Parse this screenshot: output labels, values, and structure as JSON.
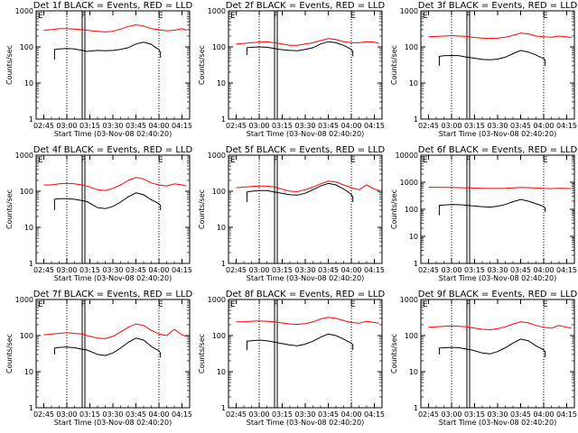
{
  "chart_data": {
    "type": "line",
    "panel_grid": "3x3",
    "yscale": "log",
    "ylabel": "Counts/sec",
    "xlabel": "Start Time (03-Nov-08 02:40:20)",
    "xlim": [
      "02:40",
      "04:20"
    ],
    "xticks": [
      "02:45",
      "03:00",
      "03:15",
      "03:30",
      "03:45",
      "04:00",
      "04:15"
    ],
    "dotted_lines_at": [
      "03:00",
      "04:00"
    ],
    "bold_markers": [
      {
        "label": "F",
        "time": "03:10"
      },
      {
        "label": "E",
        "time": "04:01"
      }
    ],
    "series_colors": {
      "events": "#000000",
      "lld": "#ff0000"
    },
    "panels": [
      {
        "title": "Det 1f BLACK = Events, RED = LLD",
        "ylim": [
          1,
          1000
        ],
        "yticks": [
          "1",
          "10",
          "100",
          "1000"
        ],
        "series": [
          {
            "color": "#ff0000",
            "x": [
              "02:45",
              "02:50",
              "02:55",
              "03:00",
              "03:05",
              "03:10",
              "03:13",
              "03:20",
              "03:25",
              "03:30",
              "03:35",
              "03:40",
              "03:45",
              "03:50",
              "03:55",
              "04:00",
              "04:05",
              "04:10",
              "04:15",
              "04:18"
            ],
            "y": [
              290,
              300,
              320,
              320,
              310,
              300,
              290,
              270,
              260,
              270,
              310,
              370,
              410,
              380,
              320,
              300,
              280,
              290,
              320,
              290
            ]
          },
          {
            "color": "#000000",
            "x": [
              "02:52",
              "02:52",
              "02:55",
              "03:00",
              "03:05",
              "03:10",
              "03:13",
              "03:20",
              "03:25",
              "03:30",
              "03:35",
              "03:40",
              "03:45",
              "03:50",
              "03:55",
              "03:58",
              "04:00",
              "04:01",
              "04:01"
            ],
            "y": [
              45,
              85,
              88,
              90,
              88,
              80,
              75,
              80,
              78,
              80,
              85,
              95,
              120,
              135,
              118,
              95,
              85,
              70,
              50
            ]
          }
        ]
      },
      {
        "title": "Det 2f BLACK = Events, RED = LLD",
        "ylim": [
          1,
          1000
        ],
        "yticks": [
          "1",
          "10",
          "100",
          "1000"
        ],
        "series": [
          {
            "color": "#ff0000",
            "x": [
              "02:45",
              "02:50",
              "02:55",
              "03:00",
              "03:05",
              "03:10",
              "03:13",
              "03:20",
              "03:25",
              "03:30",
              "03:35",
              "03:40",
              "03:45",
              "03:50",
              "03:55",
              "04:00",
              "04:05",
              "04:10",
              "04:15",
              "04:18"
            ],
            "y": [
              120,
              125,
              130,
              135,
              140,
              130,
              125,
              110,
              110,
              120,
              130,
              150,
              170,
              160,
              140,
              130,
              130,
              140,
              135,
              125
            ]
          },
          {
            "color": "#000000",
            "x": [
              "02:52",
              "02:52",
              "02:55",
              "03:00",
              "03:05",
              "03:10",
              "03:13",
              "03:20",
              "03:25",
              "03:30",
              "03:35",
              "03:40",
              "03:45",
              "03:50",
              "03:55",
              "03:58",
              "04:00",
              "04:01",
              "04:01"
            ],
            "y": [
              60,
              95,
              98,
              100,
              98,
              90,
              85,
              80,
              78,
              85,
              95,
              120,
              140,
              130,
              110,
              95,
              85,
              75,
              55
            ]
          }
        ]
      },
      {
        "title": "Det 3f BLACK = Events, RED = LLD",
        "ylim": [
          1,
          1000
        ],
        "yticks": [
          "1",
          "10",
          "100",
          "1000"
        ],
        "series": [
          {
            "color": "#ff0000",
            "x": [
              "02:45",
              "02:50",
              "02:55",
              "03:00",
              "03:05",
              "03:10",
              "03:13",
              "03:20",
              "03:25",
              "03:30",
              "03:35",
              "03:40",
              "03:45",
              "03:50",
              "03:55",
              "04:00",
              "04:05",
              "04:10",
              "04:15",
              "04:18"
            ],
            "y": [
              190,
              195,
              200,
              205,
              200,
              195,
              185,
              175,
              170,
              175,
              185,
              210,
              240,
              230,
              200,
              190,
              185,
              200,
              190,
              180
            ]
          },
          {
            "color": "#000000",
            "x": [
              "02:52",
              "02:52",
              "02:55",
              "03:00",
              "03:05",
              "03:10",
              "03:13",
              "03:20",
              "03:25",
              "03:30",
              "03:35",
              "03:40",
              "03:45",
              "03:50",
              "03:55",
              "03:58",
              "04:00",
              "04:01",
              "04:01"
            ],
            "y": [
              30,
              55,
              57,
              58,
              57,
              52,
              50,
              45,
              44,
              46,
              52,
              65,
              80,
              72,
              60,
              52,
              48,
              42,
              30
            ]
          }
        ]
      },
      {
        "title": "Det 4f BLACK = Events, RED = LLD",
        "ylim": [
          1,
          1000
        ],
        "yticks": [
          "1",
          "10",
          "100",
          "1000"
        ],
        "series": [
          {
            "color": "#ff0000",
            "x": [
              "02:45",
              "02:50",
              "02:55",
              "03:00",
              "03:05",
              "03:10",
              "03:13",
              "03:20",
              "03:25",
              "03:30",
              "03:35",
              "03:40",
              "03:45",
              "03:50",
              "03:55",
              "04:00",
              "04:05",
              "04:10",
              "04:15",
              "04:18"
            ],
            "y": [
              150,
              150,
              160,
              165,
              160,
              150,
              140,
              110,
              105,
              120,
              150,
              200,
              240,
              220,
              170,
              150,
              140,
              160,
              150,
              140
            ]
          },
          {
            "color": "#000000",
            "x": [
              "02:52",
              "02:52",
              "02:55",
              "03:00",
              "03:05",
              "03:10",
              "03:13",
              "03:20",
              "03:25",
              "03:30",
              "03:35",
              "03:40",
              "03:45",
              "03:50",
              "03:55",
              "03:58",
              "04:00",
              "04:01",
              "04:01"
            ],
            "y": [
              30,
              60,
              62,
              62,
              60,
              55,
              52,
              35,
              33,
              38,
              50,
              70,
              90,
              80,
              58,
              50,
              45,
              40,
              30
            ]
          }
        ]
      },
      {
        "title": "Det 5f BLACK = Events, RED = LLD",
        "ylim": [
          1,
          1000
        ],
        "yticks": [
          "1",
          "10",
          "100",
          "1000"
        ],
        "series": [
          {
            "color": "#ff0000",
            "x": [
              "02:45",
              "02:50",
              "02:55",
              "03:00",
              "03:05",
              "03:10",
              "03:13",
              "03:20",
              "03:25",
              "03:30",
              "03:35",
              "03:40",
              "03:45",
              "03:50",
              "03:55",
              "04:00",
              "04:05",
              "04:10",
              "04:15",
              "04:18"
            ],
            "y": [
              125,
              130,
              135,
              140,
              140,
              130,
              120,
              100,
              98,
              110,
              130,
              160,
              190,
              180,
              150,
              125,
              110,
              150,
              115,
              105
            ]
          },
          {
            "color": "#000000",
            "x": [
              "02:52",
              "02:52",
              "02:55",
              "03:00",
              "03:05",
              "03:10",
              "03:13",
              "03:20",
              "03:25",
              "03:30",
              "03:35",
              "03:40",
              "03:45",
              "03:50",
              "03:55",
              "03:58",
              "04:00",
              "04:01",
              "04:01"
            ],
            "y": [
              50,
              95,
              100,
              105,
              105,
              95,
              90,
              80,
              78,
              88,
              110,
              140,
              165,
              150,
              115,
              95,
              80,
              70,
              50
            ]
          }
        ]
      },
      {
        "title": "Det 6f BLACK = Events, RED = LLD",
        "ylim": [
          1,
          10000
        ],
        "yticks": [
          "1",
          "10",
          "100",
          "1000",
          "10000"
        ],
        "series": [
          {
            "color": "#ff0000",
            "x": [
              "02:45",
              "02:50",
              "02:55",
              "03:00",
              "03:05",
              "03:10",
              "03:13",
              "03:20",
              "03:25",
              "03:30",
              "03:35",
              "03:40",
              "03:45",
              "03:50",
              "03:55",
              "04:00",
              "04:05",
              "04:10",
              "04:15",
              "04:18"
            ],
            "y": [
              650,
              650,
              640,
              640,
              630,
              620,
              610,
              600,
              590,
              590,
              600,
              620,
              640,
              630,
              610,
              590,
              580,
              600,
              590,
              580
            ]
          },
          {
            "color": "#000000",
            "x": [
              "02:52",
              "02:52",
              "02:55",
              "03:00",
              "03:05",
              "03:10",
              "03:13",
              "03:20",
              "03:25",
              "03:30",
              "03:35",
              "03:40",
              "03:45",
              "03:50",
              "03:55",
              "03:58",
              "04:00",
              "04:01",
              "04:01"
            ],
            "y": [
              60,
              140,
              145,
              150,
              148,
              140,
              135,
              125,
              120,
              130,
              150,
              190,
              230,
              200,
              160,
              140,
              125,
              110,
              80
            ]
          }
        ]
      },
      {
        "title": "Det 7f BLACK = Events, RED = LLD",
        "ylim": [
          1,
          1000
        ],
        "yticks": [
          "1",
          "10",
          "100",
          "1000"
        ],
        "series": [
          {
            "color": "#ff0000",
            "x": [
              "02:45",
              "02:50",
              "02:55",
              "03:00",
              "03:05",
              "03:10",
              "03:13",
              "03:20",
              "03:25",
              "03:30",
              "03:35",
              "03:40",
              "03:45",
              "03:50",
              "03:55",
              "04:00",
              "04:05",
              "04:10",
              "04:15",
              "04:18"
            ],
            "y": [
              105,
              110,
              115,
              120,
              115,
              110,
              100,
              85,
              82,
              95,
              125,
              170,
              210,
              190,
              140,
              110,
              100,
              150,
              105,
              95
            ]
          },
          {
            "color": "#000000",
            "x": [
              "02:52",
              "02:52",
              "02:55",
              "03:00",
              "03:05",
              "03:10",
              "03:13",
              "03:20",
              "03:25",
              "03:30",
              "03:35",
              "03:40",
              "03:45",
              "03:50",
              "03:55",
              "03:58",
              "04:00",
              "04:01",
              "04:01"
            ],
            "y": [
              30,
              45,
              47,
              48,
              46,
              42,
              40,
              30,
              28,
              33,
              45,
              65,
              85,
              75,
              50,
              42,
              38,
              32,
              25
            ]
          }
        ]
      },
      {
        "title": "Det 8f BLACK = Events, RED = LLD",
        "ylim": [
          1,
          1000
        ],
        "yticks": [
          "1",
          "10",
          "100",
          "1000"
        ],
        "series": [
          {
            "color": "#ff0000",
            "x": [
              "02:45",
              "02:50",
              "02:55",
              "03:00",
              "03:05",
              "03:10",
              "03:13",
              "03:20",
              "03:25",
              "03:30",
              "03:35",
              "03:40",
              "03:45",
              "03:50",
              "03:55",
              "04:00",
              "04:05",
              "04:10",
              "04:15",
              "04:18"
            ],
            "y": [
              240,
              240,
              250,
              255,
              250,
              240,
              230,
              210,
              205,
              215,
              240,
              290,
              320,
              300,
              260,
              230,
              220,
              250,
              230,
              220
            ]
          },
          {
            "color": "#000000",
            "x": [
              "02:52",
              "02:52",
              "02:55",
              "03:00",
              "03:05",
              "03:10",
              "03:13",
              "03:20",
              "03:25",
              "03:30",
              "03:35",
              "03:40",
              "03:45",
              "03:50",
              "03:55",
              "03:58",
              "04:00",
              "04:01",
              "04:01"
            ],
            "y": [
              40,
              70,
              72,
              75,
              72,
              66,
              62,
              55,
              52,
              58,
              70,
              90,
              110,
              100,
              80,
              68,
              62,
              55,
              40
            ]
          }
        ]
      },
      {
        "title": "Det 9f BLACK = Events, RED = LLD",
        "ylim": [
          1,
          1000
        ],
        "yticks": [
          "1",
          "10",
          "100",
          "1000"
        ],
        "series": [
          {
            "color": "#ff0000",
            "x": [
              "02:45",
              "02:50",
              "02:55",
              "03:00",
              "03:05",
              "03:10",
              "03:13",
              "03:20",
              "03:25",
              "03:30",
              "03:35",
              "03:40",
              "03:45",
              "03:50",
              "03:55",
              "04:00",
              "04:05",
              "04:10",
              "04:15",
              "04:18"
            ],
            "y": [
              170,
              175,
              180,
              185,
              180,
              175,
              165,
              150,
              145,
              155,
              175,
              210,
              240,
              225,
              190,
              170,
              160,
              190,
              170,
              160
            ]
          },
          {
            "color": "#000000",
            "x": [
              "02:52",
              "02:52",
              "02:55",
              "03:00",
              "03:05",
              "03:10",
              "03:13",
              "03:20",
              "03:25",
              "03:30",
              "03:35",
              "03:40",
              "03:45",
              "03:50",
              "03:55",
              "03:58",
              "04:00",
              "04:01",
              "04:01"
            ],
            "y": [
              30,
              45,
              46,
              47,
              46,
              42,
              40,
              33,
              31,
              36,
              46,
              62,
              80,
              72,
              52,
              45,
              40,
              35,
              25
            ]
          }
        ]
      }
    ]
  }
}
